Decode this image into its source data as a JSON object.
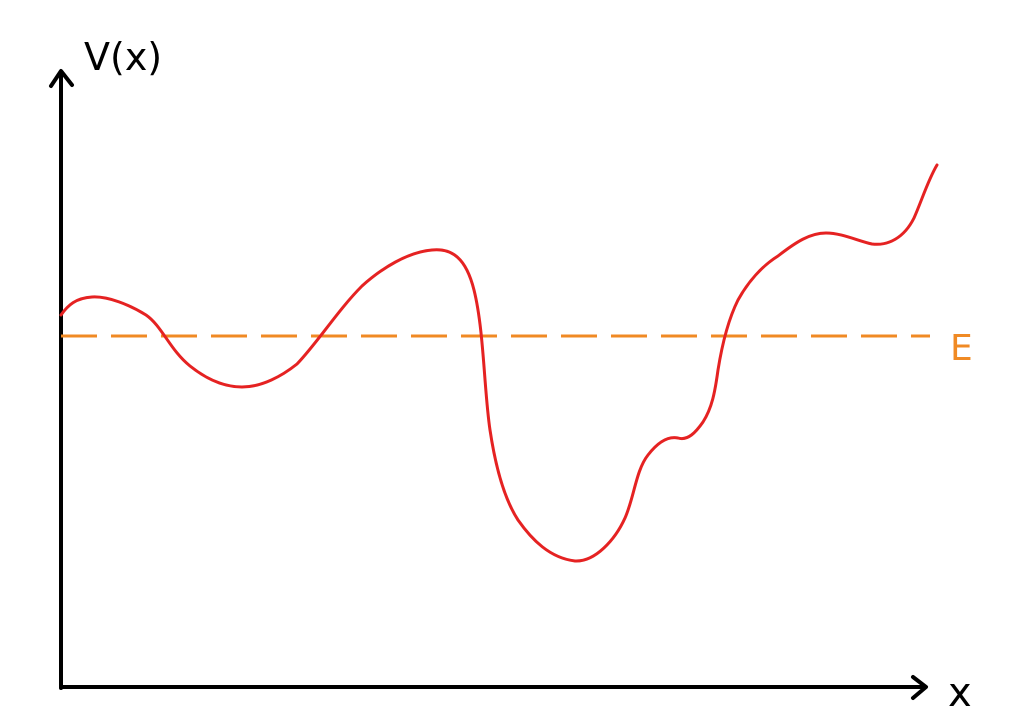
{
  "diagram": {
    "y_axis_label": "V(x)",
    "x_axis_label": "x",
    "energy_label": "E"
  },
  "colors": {
    "axes": "#000000",
    "potential_curve": "#e52222",
    "energy_line": "#f08a24",
    "background": "#ffffff"
  },
  "icons": {
    "y_axis_arrow": "arrow-up-icon",
    "x_axis_arrow": "arrow-right-icon"
  }
}
